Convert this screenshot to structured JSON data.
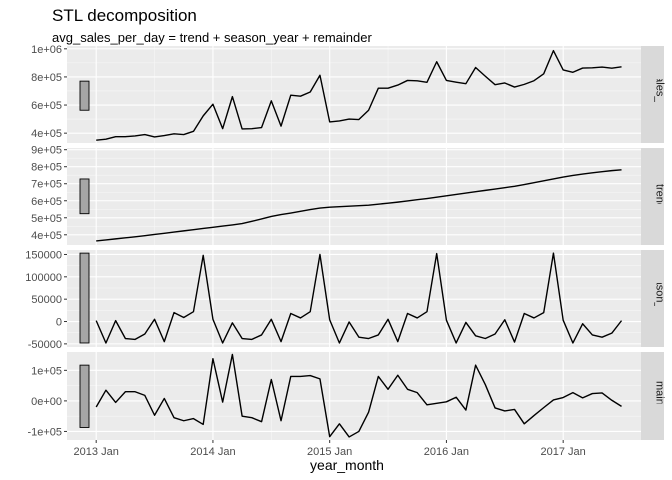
{
  "chart_data": {
    "type": "line",
    "title": "STL decomposition",
    "subtitle": "avg_sales_per_day = trend + season_year + remainder",
    "xlabel": "year_month",
    "x_ticks": [
      {
        "label": "2013 Jan",
        "value": "2013-01"
      },
      {
        "label": "2014 Jan",
        "value": "2014-01"
      },
      {
        "label": "2015 Jan",
        "value": "2015-01"
      },
      {
        "label": "2016 Jan",
        "value": "2016-01"
      },
      {
        "label": "2017 Jan",
        "value": "2017-01"
      }
    ],
    "x_range": [
      "2012-10",
      "2017-09"
    ],
    "x": [
      "2013-01",
      "2013-02",
      "2013-03",
      "2013-04",
      "2013-05",
      "2013-06",
      "2013-07",
      "2013-08",
      "2013-09",
      "2013-10",
      "2013-11",
      "2013-12",
      "2014-01",
      "2014-02",
      "2014-03",
      "2014-04",
      "2014-05",
      "2014-06",
      "2014-07",
      "2014-08",
      "2014-09",
      "2014-10",
      "2014-11",
      "2014-12",
      "2015-01",
      "2015-02",
      "2015-03",
      "2015-04",
      "2015-05",
      "2015-06",
      "2015-07",
      "2015-08",
      "2015-09",
      "2015-10",
      "2015-11",
      "2015-12",
      "2016-01",
      "2016-02",
      "2016-03",
      "2016-04",
      "2016-05",
      "2016-06",
      "2016-07",
      "2016-08",
      "2016-09",
      "2016-10",
      "2016-11",
      "2016-12",
      "2017-01",
      "2017-02",
      "2017-03",
      "2017-04",
      "2017-05",
      "2017-06",
      "2017-07"
    ],
    "grid": true,
    "panels": [
      {
        "strip": "avg_sales_per_day",
        "ylim": [
          330000,
          1020000
        ],
        "y_ticks": [
          {
            "label": "4e+05",
            "value": 400000
          },
          {
            "label": "6e+05",
            "value": 600000
          },
          {
            "label": "8e+05",
            "value": 800000
          },
          {
            "label": "1e+06",
            "value": 1000000
          }
        ],
        "scale_bar": [
          563000,
          770000
        ],
        "values": [
          350000,
          357000,
          375000,
          375000,
          380000,
          390000,
          373000,
          383000,
          395000,
          390000,
          413000,
          523000,
          606000,
          432000,
          660000,
          430000,
          432000,
          440000,
          630000,
          450000,
          670000,
          663000,
          693000,
          812000,
          480000,
          487000,
          500000,
          497000,
          563000,
          720000,
          720000,
          742000,
          775000,
          772000,
          762000,
          908000,
          775000,
          763000,
          752000,
          867000,
          805000,
          745000,
          757000,
          728000,
          747000,
          773000,
          822000,
          987000,
          850000,
          833000,
          863000,
          865000,
          870000,
          862000,
          872000
        ]
      },
      {
        "strip": "trend",
        "ylim": [
          340000,
          910000
        ],
        "y_ticks": [
          {
            "label": "4e+05",
            "value": 400000
          },
          {
            "label": "5e+05",
            "value": 500000
          },
          {
            "label": "6e+05",
            "value": 600000
          },
          {
            "label": "7e+05",
            "value": 700000
          },
          {
            "label": "8e+05",
            "value": 800000
          },
          {
            "label": "9e+05",
            "value": 900000
          }
        ],
        "scale_bar": [
          524000,
          728000
        ],
        "values": [
          364000,
          370000,
          376000,
          382000,
          388000,
          395000,
          402000,
          409000,
          416000,
          423000,
          430000,
          437000,
          444000,
          451000,
          458000,
          466000,
          479000,
          493000,
          508000,
          519000,
          528000,
          538000,
          548000,
          557000,
          562000,
          565000,
          568000,
          571000,
          574000,
          580000,
          586000,
          592000,
          599000,
          606000,
          613000,
          621000,
          629000,
          637000,
          645000,
          653000,
          661000,
          669000,
          677000,
          685000,
          695000,
          706000,
          717000,
          728000,
          739000,
          749000,
          757000,
          764000,
          771000,
          777000,
          782000
        ]
      },
      {
        "strip": "season_year",
        "ylim": [
          -57000,
          160000
        ],
        "y_ticks": [
          {
            "label": "-50000",
            "value": -50000
          },
          {
            "label": "0",
            "value": 0
          },
          {
            "label": "50000",
            "value": 50000
          },
          {
            "label": "100000",
            "value": 100000
          },
          {
            "label": "150000",
            "value": 150000
          }
        ],
        "scale_bar": [
          -48000,
          153000
        ],
        "values": [
          2000,
          -48000,
          2000,
          -38000,
          -40000,
          -28000,
          5000,
          -45000,
          20000,
          9000,
          22000,
          148000,
          5000,
          -48000,
          -3000,
          -38000,
          -40000,
          -30000,
          5000,
          -45000,
          18000,
          8000,
          22000,
          150000,
          4000,
          -48000,
          -1000,
          -35000,
          -38000,
          -30000,
          5000,
          -45000,
          18000,
          8000,
          22000,
          152000,
          3000,
          -48000,
          -2000,
          -32000,
          -38000,
          -28000,
          4000,
          -46000,
          18000,
          8000,
          20000,
          153000,
          3000,
          -48000,
          -5000,
          -30000,
          -35000,
          -26000,
          2000
        ]
      },
      {
        "strip": "remainder",
        "ylim": [
          -128000,
          160000
        ],
        "y_ticks": [
          {
            "label": "-1e+05",
            "value": -100000
          },
          {
            "label": "0e+00",
            "value": 0
          },
          {
            "label": "1e+05",
            "value": 100000
          }
        ],
        "scale_bar": [
          -87000,
          117000
        ],
        "values": [
          -20000,
          35000,
          -5000,
          30000,
          30000,
          18000,
          -47000,
          8000,
          -55000,
          -65000,
          -58000,
          -77000,
          138000,
          -4000,
          152000,
          -50000,
          -55000,
          -68000,
          70000,
          -65000,
          80000,
          80000,
          83000,
          72000,
          -117000,
          -75000,
          -118000,
          -100000,
          -37000,
          80000,
          38000,
          84000,
          38000,
          27000,
          -13000,
          -8000,
          -3000,
          12000,
          -30000,
          117000,
          53000,
          -23000,
          -33000,
          -28000,
          -75000,
          -48000,
          -22000,
          3000,
          11000,
          27000,
          10000,
          24000,
          26000,
          2000,
          -18000
        ]
      }
    ]
  }
}
